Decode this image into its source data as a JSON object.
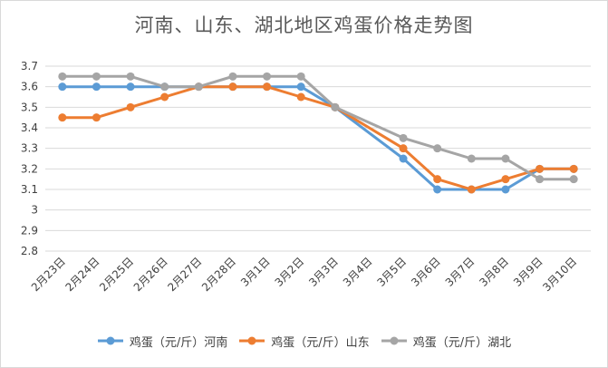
{
  "chart_data": {
    "type": "line",
    "title": "河南、山东、湖北地区鸡蛋价格走势图",
    "categories": [
      "2月23日",
      "2月24日",
      "2月25日",
      "2月26日",
      "2月27日",
      "2月28日",
      "3月1日",
      "3月2日",
      "3月3日",
      "3月4日",
      "3月5日",
      "3月6日",
      "3月7日",
      "3月8日",
      "3月9日",
      "3月10日"
    ],
    "ylim": [
      2.8,
      3.7
    ],
    "yticks": [
      "2.8",
      "2.9",
      "3",
      "3.1",
      "3.2",
      "3.3",
      "3.4",
      "3.5",
      "3.6",
      "3.7"
    ],
    "grid": true,
    "legend_position": "bottom",
    "series": [
      {
        "name": "鸡蛋（元/斤）河南",
        "color": "#5b9bd5",
        "values": [
          3.6,
          3.6,
          3.6,
          3.6,
          3.6,
          3.6,
          3.6,
          3.6,
          3.5,
          null,
          3.25,
          3.1,
          3.1,
          3.1,
          3.2,
          3.2
        ]
      },
      {
        "name": "鸡蛋（元/斤）山东",
        "color": "#ed7d31",
        "values": [
          3.45,
          3.45,
          3.5,
          3.55,
          3.6,
          3.6,
          3.6,
          3.55,
          3.5,
          null,
          3.3,
          3.15,
          3.1,
          3.15,
          3.2,
          3.2
        ]
      },
      {
        "name": "鸡蛋（元/斤）湖北",
        "color": "#a5a5a5",
        "values": [
          3.65,
          3.65,
          3.65,
          3.6,
          3.6,
          3.65,
          3.65,
          3.65,
          3.5,
          null,
          3.35,
          3.3,
          3.25,
          3.25,
          3.15,
          3.15
        ]
      }
    ]
  }
}
